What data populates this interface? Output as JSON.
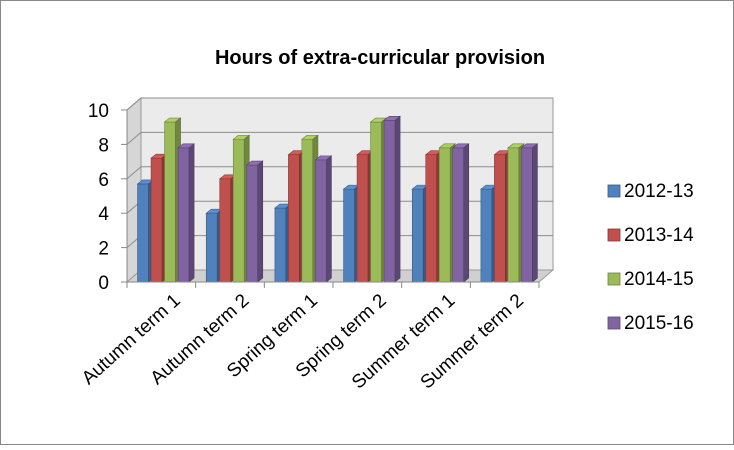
{
  "chart_data": {
    "type": "bar",
    "title": "Hours of extra-curricular provision",
    "xlabel": "",
    "ylabel": "",
    "categories": [
      "Autumn term 1",
      "Autumn term 2",
      "Spring term 1",
      "Spring term 2",
      "Summer term 1",
      "Summer term 2"
    ],
    "series": [
      {
        "name": "2012-13",
        "values": [
          5.7,
          4.0,
          4.3,
          5.4,
          5.4,
          5.4
        ],
        "color": "#4f81bd"
      },
      {
        "name": "2013-14",
        "values": [
          7.2,
          6.0,
          7.4,
          7.4,
          7.4,
          7.4
        ],
        "color": "#c0504d"
      },
      {
        "name": "2014-15",
        "values": [
          9.3,
          8.3,
          8.3,
          9.3,
          7.8,
          7.8
        ],
        "color": "#9bbb59"
      },
      {
        "name": "2015-16",
        "values": [
          7.8,
          6.8,
          7.1,
          9.4,
          7.8,
          7.8
        ],
        "color": "#8064a2"
      }
    ],
    "yticks": [
      "0",
      "2",
      "4",
      "6",
      "8",
      "10"
    ],
    "ylim": [
      0,
      10
    ],
    "grid": true,
    "legend_position": "right",
    "three_d": true
  }
}
